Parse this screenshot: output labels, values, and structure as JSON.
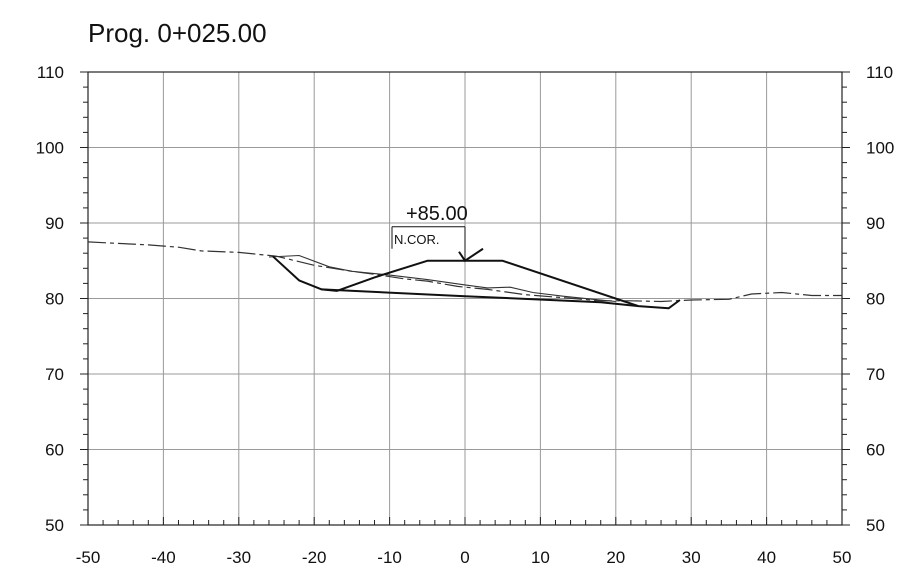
{
  "chart_data": {
    "type": "line",
    "title": "Prog. 0+025.00",
    "xlabel": "",
    "ylabel": "",
    "xlim": [
      -50,
      50
    ],
    "ylim": [
      50,
      110
    ],
    "grid": true,
    "x_ticks": [
      -50,
      -40,
      -30,
      -20,
      -10,
      0,
      10,
      20,
      30,
      40,
      50
    ],
    "y_ticks": [
      50,
      60,
      70,
      80,
      90,
      100,
      110
    ],
    "x_tick_labels": [
      "-50",
      "-40",
      "-30",
      "-20",
      "-10",
      "0",
      "10",
      "20",
      "30",
      "40",
      "50"
    ],
    "y_tick_labels": [
      "50",
      "60",
      "70",
      "80",
      "90",
      "100",
      "110"
    ],
    "series": [
      {
        "style": "dashed",
        "points": [
          [
            -50,
            87.5
          ],
          [
            -42,
            87.1
          ],
          [
            -38,
            86.8
          ],
          [
            -35,
            86.3
          ],
          [
            -30,
            86.1
          ],
          [
            -25,
            85.6
          ],
          [
            -20,
            84.4
          ],
          [
            -15,
            83.6
          ],
          [
            -12,
            83.2
          ],
          [
            -8,
            82.6
          ],
          [
            -5,
            82.3
          ],
          [
            -1,
            81.6
          ],
          [
            3,
            81.2
          ],
          [
            8,
            80.5
          ],
          [
            13,
            80.1
          ],
          [
            18,
            79.7
          ],
          [
            22,
            79.7
          ],
          [
            26,
            79.6
          ],
          [
            30,
            79.8
          ],
          [
            35,
            79.9
          ],
          [
            38,
            80.6
          ],
          [
            42,
            80.8
          ],
          [
            46,
            80.4
          ],
          [
            50,
            80.4
          ]
        ]
      },
      {
        "style": "thin",
        "points": [
          [
            -26,
            85.5
          ],
          [
            -22,
            85.7
          ],
          [
            -18,
            84.2
          ],
          [
            -15,
            83.6
          ],
          [
            -10,
            83.1
          ],
          [
            -5,
            82.5
          ],
          [
            0,
            81.8
          ],
          [
            3,
            81.4
          ],
          [
            6,
            81.5
          ],
          [
            9,
            80.8
          ],
          [
            13,
            80.3
          ],
          [
            17,
            79.9
          ],
          [
            20,
            79.6
          ]
        ]
      },
      {
        "style": "thick",
        "points": [
          [
            -25.5,
            85.6
          ],
          [
            -22,
            82.4
          ],
          [
            -19,
            81.2
          ],
          [
            -17,
            81.0
          ],
          [
            -12,
            82.8
          ],
          [
            -5,
            85.0
          ],
          [
            5,
            85.0
          ],
          [
            23,
            79.0
          ],
          [
            27,
            78.7
          ],
          [
            28.5,
            79.8
          ]
        ]
      },
      {
        "style": "thick",
        "points": [
          [
            -19,
            81.2
          ],
          [
            0,
            80.3
          ],
          [
            18,
            79.5
          ],
          [
            23,
            79.0
          ]
        ]
      }
    ],
    "annotations": {
      "elevation_label": "+85.00",
      "box_label": "N.COR.",
      "marker_x": 0,
      "marker_y": 85.0
    }
  }
}
